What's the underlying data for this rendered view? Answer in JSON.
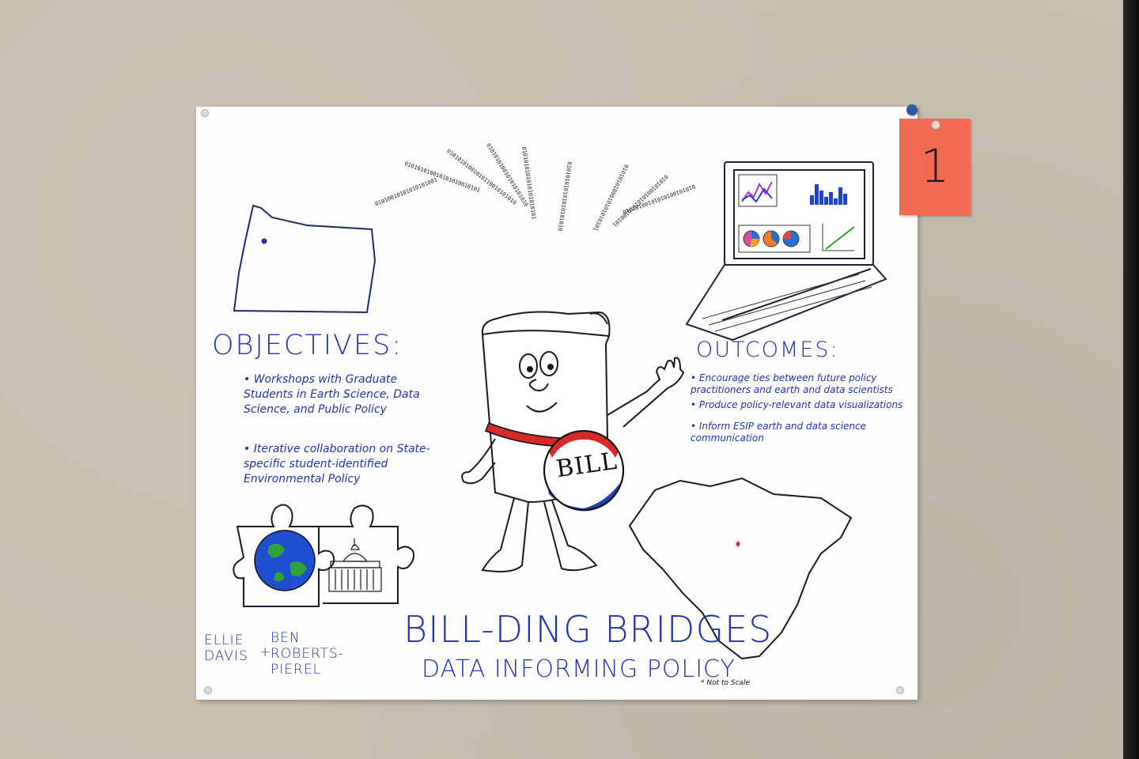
{
  "poster": {
    "title": "BILL-DING BRIDGES",
    "subtitle": "DATA INFORMING POLICY",
    "note": "* Not to Scale",
    "bill_label": "BILL",
    "objectives": {
      "heading": "OBJECTIVES:",
      "items": [
        "• Workshops with Graduate Students in Earth Science, Data Science, and Public Policy",
        "• Iterative collaboration on State-specific student-identified Environmental Policy"
      ]
    },
    "outcomes": {
      "heading": "OUTCOMES:",
      "items": [
        "• Encourage ties between future policy practitioners and earth and data scientists",
        "• Produce policy-relevant data visualizations",
        "• Inform ESIP earth and data science communication"
      ]
    },
    "authors": {
      "first": "ELLIE DAVIS",
      "joiner": "+",
      "second": "BEN ROBERTS-PIEREL"
    }
  },
  "sticky_note": {
    "number": "1"
  },
  "colors": {
    "ink_blue": "#2233a8",
    "wall": "#c8beb0",
    "sticky": "#f36b52",
    "sash_red": "#d42a2a",
    "sash_blue": "#2340b0",
    "earth_blue": "#1f4fd0",
    "earth_green": "#2fa33a"
  }
}
